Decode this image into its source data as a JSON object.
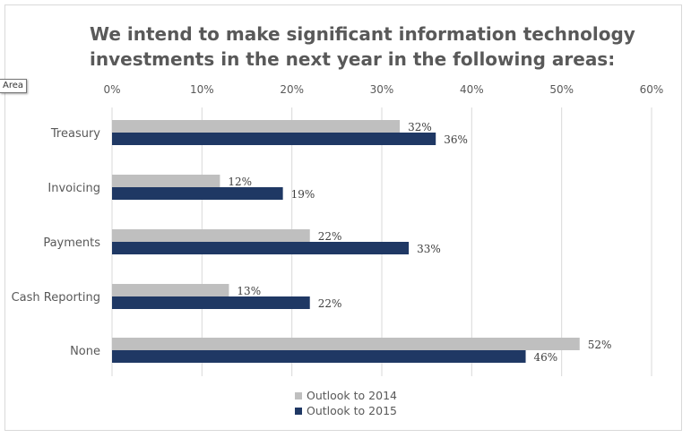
{
  "tooltip": "Area",
  "chart_data": {
    "type": "bar",
    "orientation": "horizontal",
    "title": [
      "We intend to make significant information technology",
      "investments in the next year in the following areas:"
    ],
    "categories": [
      "Treasury",
      "Invoicing",
      "Payments",
      "Cash Reporting",
      "None"
    ],
    "series": [
      {
        "name": "Outlook to 2014",
        "color": "#bfbfbf",
        "values": [
          32,
          12,
          22,
          13,
          52
        ],
        "labels": [
          "32%",
          "12%",
          "22%",
          "13%",
          "52%"
        ]
      },
      {
        "name": "Outlook to 2015",
        "color": "#1f3864",
        "values": [
          36,
          19,
          33,
          22,
          46
        ],
        "labels": [
          "36%",
          "19%",
          "33%",
          "22%",
          "46%"
        ]
      }
    ],
    "xlim": [
      0,
      60
    ],
    "xticks": [
      0,
      10,
      20,
      30,
      40,
      50,
      60
    ],
    "xtick_labels": [
      "0%",
      "10%",
      "20%",
      "30%",
      "40%",
      "50%",
      "60%"
    ],
    "xaxis_position": "top",
    "grid": true,
    "legend_position": "bottom"
  }
}
